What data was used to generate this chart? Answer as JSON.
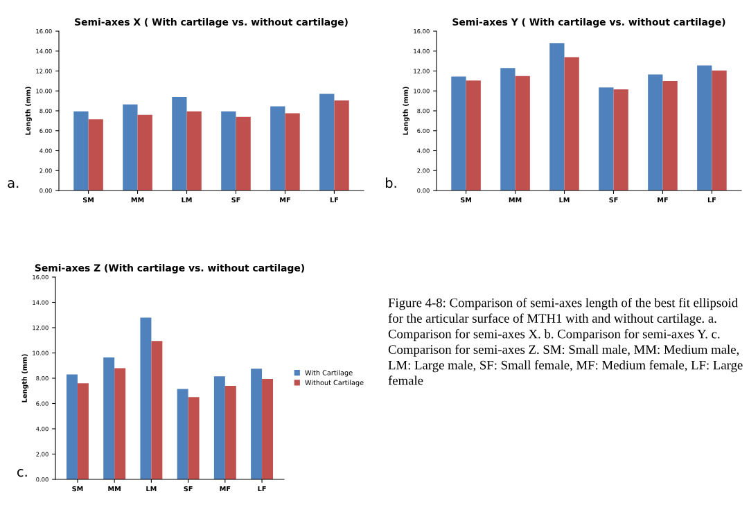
{
  "chart_data": [
    {
      "type": "bar",
      "title": "Semi-axes X ( With cartilage vs. without cartilage)",
      "ylabel": "Length (mm)",
      "categories": [
        "SM",
        "MM",
        "LM",
        "SF",
        "MF",
        "LF"
      ],
      "series": [
        {
          "color": "#4f81bd",
          "values": [
            7.95,
            8.65,
            9.4,
            7.95,
            8.45,
            9.7
          ]
        },
        {
          "color": "#c0504d",
          "values": [
            7.15,
            7.6,
            7.95,
            7.4,
            7.75,
            9.05
          ]
        }
      ],
      "ylim": [
        0,
        16
      ],
      "yticks": [
        {
          "value": 0,
          "label": "0.00"
        },
        {
          "value": 2,
          "label": "2.00"
        },
        {
          "value": 4,
          "label": "4.00"
        },
        {
          "value": 6,
          "label": "6.00"
        },
        {
          "value": 8,
          "label": "8.00"
        },
        {
          "value": 10,
          "label": "10.00"
        },
        {
          "value": 12,
          "label": "12.00"
        },
        {
          "value": 14,
          "label": "14.00"
        },
        {
          "value": 16,
          "label": "16.00"
        }
      ],
      "annotations": [
        "a."
      ],
      "grid": false,
      "legend": false
    },
    {
      "type": "bar",
      "title": "Semi-axes Y ( With cartilage vs. without cartilage)",
      "ylabel": "Length (mm)",
      "categories": [
        "SM",
        "MM",
        "LM",
        "SF",
        "MF",
        "LF"
      ],
      "series": [
        {
          "color": "#4f81bd",
          "values": [
            11.45,
            12.3,
            14.8,
            10.35,
            11.65,
            12.55
          ]
        },
        {
          "color": "#c0504d",
          "values": [
            11.05,
            11.5,
            13.4,
            10.15,
            11.0,
            12.05
          ]
        }
      ],
      "ylim": [
        0,
        16
      ],
      "yticks": [
        {
          "value": 0,
          "label": "0.00"
        },
        {
          "value": 2,
          "label": "2.00"
        },
        {
          "value": 4,
          "label": "4.00"
        },
        {
          "value": 6,
          "label": "6.00"
        },
        {
          "value": 8,
          "label": "8.00"
        },
        {
          "value": 10,
          "label": "10.00"
        },
        {
          "value": 12,
          "label": "12.00"
        },
        {
          "value": 14,
          "label": "14.00"
        },
        {
          "value": 16,
          "label": "16.00"
        }
      ],
      "annotations": [
        "b."
      ],
      "grid": false,
      "legend": false
    },
    {
      "type": "bar",
      "title": "Semi-axes Z (With cartilage vs. without cartilage)",
      "ylabel": "Length (mm)",
      "categories": [
        "SM",
        "MM",
        "LM",
        "SF",
        "MF",
        "LF"
      ],
      "series": [
        {
          "name": "With Cartilage",
          "color": "#4f81bd",
          "values": [
            8.3,
            9.65,
            12.8,
            7.15,
            8.15,
            8.75
          ]
        },
        {
          "name": "Without Cartilage",
          "color": "#c0504d",
          "values": [
            7.6,
            8.8,
            10.95,
            6.5,
            7.4,
            7.95
          ]
        }
      ],
      "ylim": [
        0,
        16
      ],
      "yticks": [
        {
          "value": 0,
          "label": "0.00"
        },
        {
          "value": 2,
          "label": "2.00"
        },
        {
          "value": 4,
          "label": "4.00"
        },
        {
          "value": 6,
          "label": "6.00"
        },
        {
          "value": 8,
          "label": "8.00"
        },
        {
          "value": 10,
          "label": "10.00"
        },
        {
          "value": 12,
          "label": "12.00"
        },
        {
          "value": 14,
          "label": "14.00"
        },
        {
          "value": 16,
          "label": "16.00"
        }
      ],
      "annotations": [
        "c."
      ],
      "grid": false,
      "legend": "right"
    },
    {
      "type": "other",
      "annotations": [
        "Figure 4-8: Comparison of semi-axes length of the best fit ellipsoid for the articular surface of MTH1 with and without cartilage. a. Comparison for semi-axes X. b. Comparison for semi-axes Y. c. Comparison for semi-axes Z. SM: Small male, MM: Medium male, LM: Large male, SF: Small female, MF: Medium female, LF: Large female"
      ]
    }
  ]
}
